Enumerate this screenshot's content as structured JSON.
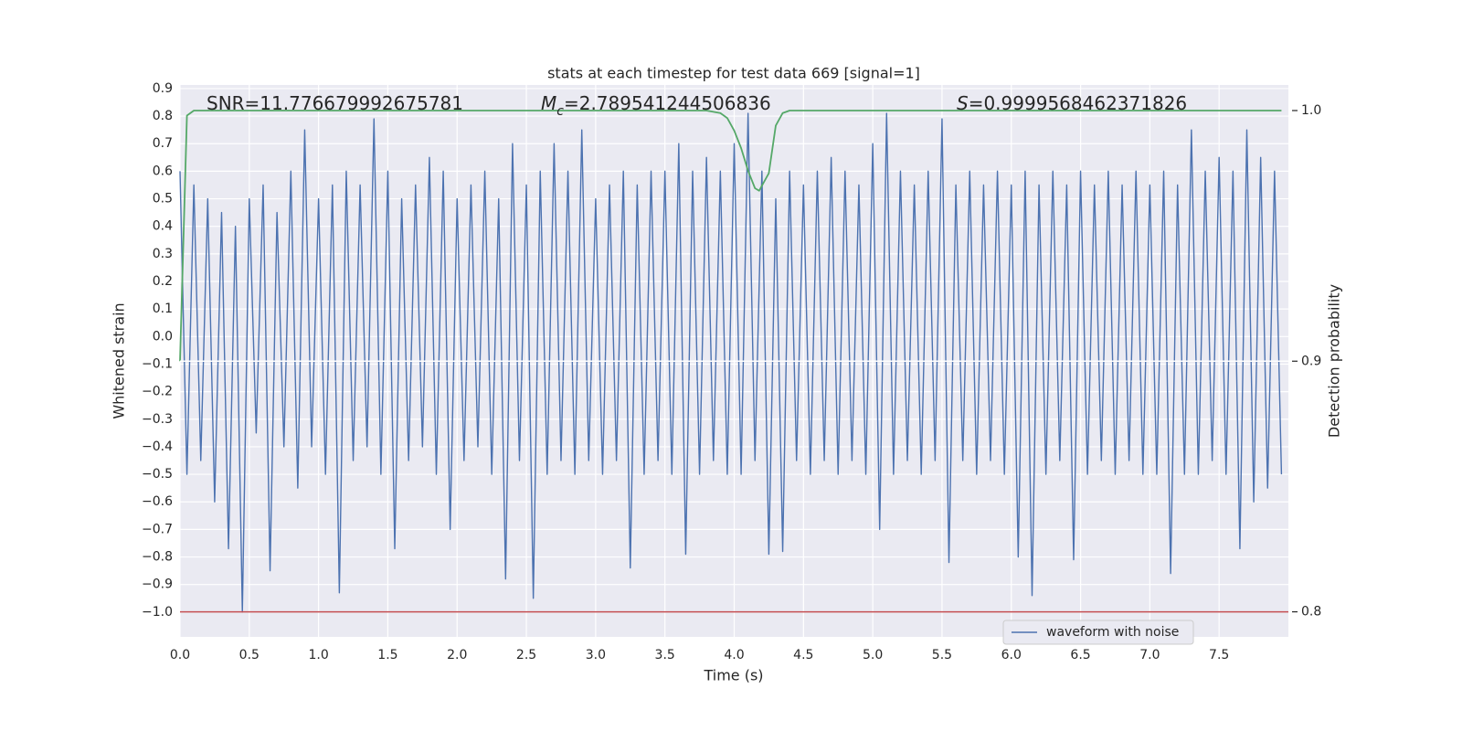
{
  "chart_data": {
    "type": "line",
    "title": "stats at each timestep for test data 669 [signal=1]",
    "xlabel": "Time (s)",
    "ylabel": "Whitened strain",
    "y2label": "Detection probability",
    "annotations": [
      {
        "text": "SNR=11.776679992675781"
      },
      {
        "symbol": "M",
        "subscript": "c",
        "text": "=2.789541244506836"
      },
      {
        "symbol": "S",
        "text": "=0.9999568462371826"
      }
    ],
    "xlim": [
      0,
      8
    ],
    "ylim": [
      -1.09,
      0.913
    ],
    "y2lim": [
      0.79,
      1.0102
    ],
    "xticks": [
      {
        "value": 0,
        "label": "0.0"
      },
      {
        "value": 0.5,
        "label": "0.5"
      },
      {
        "value": 1,
        "label": "1.0"
      },
      {
        "value": 1.5,
        "label": "1.5"
      },
      {
        "value": 2,
        "label": "2.0"
      },
      {
        "value": 2.5,
        "label": "2.5"
      },
      {
        "value": 3,
        "label": "3.0"
      },
      {
        "value": 3.5,
        "label": "3.5"
      },
      {
        "value": 4,
        "label": "4.0"
      },
      {
        "value": 4.5,
        "label": "4.5"
      },
      {
        "value": 5,
        "label": "5.0"
      },
      {
        "value": 5.5,
        "label": "5.5"
      },
      {
        "value": 6,
        "label": "6.0"
      },
      {
        "value": 6.5,
        "label": "6.5"
      },
      {
        "value": 7,
        "label": "7.0"
      },
      {
        "value": 7.5,
        "label": "7.5"
      }
    ],
    "yticks": [
      {
        "value": 0.9,
        "label": "0.9"
      },
      {
        "value": 0.8,
        "label": "0.8"
      },
      {
        "value": 0.7,
        "label": "0.7"
      },
      {
        "value": 0.6,
        "label": "0.6"
      },
      {
        "value": 0.5,
        "label": "0.5"
      },
      {
        "value": 0.4,
        "label": "0.4"
      },
      {
        "value": 0.3,
        "label": "0.3"
      },
      {
        "value": 0.2,
        "label": "0.2"
      },
      {
        "value": 0.1,
        "label": "0.1"
      },
      {
        "value": 0,
        "label": "0.0"
      },
      {
        "value": -0.1,
        "label": "−0.1"
      },
      {
        "value": -0.2,
        "label": "−0.2"
      },
      {
        "value": -0.3,
        "label": "−0.3"
      },
      {
        "value": -0.4,
        "label": "−0.4"
      },
      {
        "value": -0.5,
        "label": "−0.5"
      },
      {
        "value": -0.6,
        "label": "−0.6"
      },
      {
        "value": -0.7,
        "label": "−0.7"
      },
      {
        "value": -0.8,
        "label": "−0.8"
      },
      {
        "value": -0.9,
        "label": "−0.9"
      },
      {
        "value": -1,
        "label": "−1.0"
      }
    ],
    "y2ticks": [
      {
        "value": 1,
        "label": "1.0"
      },
      {
        "value": 0.9,
        "label": "0.9"
      },
      {
        "value": 0.8,
        "label": "0.8"
      }
    ],
    "grid": true,
    "legend": "lower right",
    "hlines": [
      {
        "value": 0.9,
        "axis": "y2",
        "color": "#ffffff"
      },
      {
        "value": 0.8,
        "axis": "y2",
        "color": "#c44e52"
      }
    ],
    "series": [
      {
        "name": "waveform with noise",
        "color": "#4c72b0",
        "x": [
          0,
          0.05,
          0.1,
          0.15,
          0.2,
          0.25,
          0.3,
          0.35,
          0.4,
          0.45,
          0.5,
          0.55,
          0.6,
          0.65,
          0.7,
          0.75,
          0.8,
          0.85,
          0.9,
          0.95,
          1,
          1.05,
          1.1,
          1.15,
          1.2,
          1.25,
          1.3,
          1.35,
          1.4,
          1.45,
          1.5,
          1.55,
          1.6,
          1.65,
          1.7,
          1.75,
          1.8,
          1.85,
          1.9,
          1.95,
          2,
          2.05,
          2.1,
          2.15,
          2.2,
          2.25,
          2.3,
          2.35,
          2.4,
          2.45,
          2.5,
          2.55,
          2.6,
          2.65,
          2.7,
          2.75,
          2.8,
          2.85,
          2.9,
          2.95,
          3,
          3.05,
          3.1,
          3.15,
          3.2,
          3.25,
          3.3,
          3.35,
          3.4,
          3.45,
          3.5,
          3.55,
          3.6,
          3.65,
          3.7,
          3.75,
          3.8,
          3.85,
          3.9,
          3.95,
          4,
          4.05,
          4.1,
          4.15,
          4.2,
          4.25,
          4.3,
          4.35,
          4.4,
          4.45,
          4.5,
          4.55,
          4.6,
          4.65,
          4.7,
          4.75,
          4.8,
          4.85,
          4.9,
          4.95,
          5,
          5.05,
          5.1,
          5.15,
          5.2,
          5.25,
          5.3,
          5.35,
          5.4,
          5.45,
          5.5,
          5.55,
          5.6,
          5.65,
          5.7,
          5.75,
          5.8,
          5.85,
          5.9,
          5.95,
          6,
          6.05,
          6.1,
          6.15,
          6.2,
          6.25,
          6.3,
          6.35,
          6.4,
          6.45,
          6.5,
          6.55,
          6.6,
          6.65,
          6.7,
          6.75,
          6.8,
          6.85,
          6.9,
          6.95,
          7,
          7.05,
          7.1,
          7.15,
          7.2,
          7.25,
          7.3,
          7.35,
          7.4,
          7.45,
          7.5,
          7.55,
          7.6,
          7.65,
          7.7,
          7.75,
          7.8,
          7.85,
          7.9,
          7.95
        ],
        "values": [
          0.6,
          -0.5,
          0.55,
          -0.45,
          0.5,
          -0.6,
          0.45,
          -0.77,
          0.4,
          -1.0,
          0.5,
          -0.35,
          0.55,
          -0.85,
          0.45,
          -0.4,
          0.6,
          -0.55,
          0.75,
          -0.4,
          0.5,
          -0.5,
          0.55,
          -0.93,
          0.6,
          -0.45,
          0.55,
          -0.4,
          0.79,
          -0.5,
          0.6,
          -0.77,
          0.5,
          -0.45,
          0.55,
          -0.4,
          0.65,
          -0.5,
          0.6,
          -0.7,
          0.5,
          -0.45,
          0.55,
          -0.4,
          0.6,
          -0.5,
          0.5,
          -0.88,
          0.7,
          -0.45,
          0.55,
          -0.95,
          0.6,
          -0.5,
          0.7,
          -0.45,
          0.6,
          -0.5,
          0.75,
          -0.45,
          0.5,
          -0.5,
          0.55,
          -0.45,
          0.6,
          -0.84,
          0.55,
          -0.5,
          0.6,
          -0.45,
          0.6,
          -0.5,
          0.7,
          -0.79,
          0.6,
          -0.5,
          0.65,
          -0.45,
          0.6,
          -0.5,
          0.7,
          -0.5,
          0.81,
          -0.45,
          0.6,
          -0.79,
          0.5,
          -0.78,
          0.6,
          -0.45,
          0.55,
          -0.5,
          0.6,
          -0.45,
          0.65,
          -0.5,
          0.6,
          -0.45,
          0.55,
          -0.5,
          0.7,
          -0.7,
          0.81,
          -0.5,
          0.6,
          -0.45,
          0.55,
          -0.5,
          0.6,
          -0.45,
          0.79,
          -0.82,
          0.55,
          -0.45,
          0.6,
          -0.5,
          0.55,
          -0.45,
          0.6,
          -0.5,
          0.55,
          -0.8,
          0.6,
          -0.94,
          0.55,
          -0.5,
          0.6,
          -0.45,
          0.55,
          -0.81,
          0.6,
          -0.5,
          0.55,
          -0.45,
          0.6,
          -0.5,
          0.55,
          -0.45,
          0.6,
          -0.5,
          0.55,
          -0.5,
          0.6,
          -0.86,
          0.55,
          -0.5,
          0.75,
          -0.5,
          0.6,
          -0.45,
          0.65,
          -0.5,
          0.6,
          -0.77,
          0.75,
          -0.6,
          0.65,
          -0.55,
          0.6,
          -0.5
        ]
      },
      {
        "color": "#55a868",
        "axis": "y2",
        "x": [
          0,
          0.05,
          0.1,
          0.5,
          1,
          2,
          3,
          3.8,
          3.9,
          3.95,
          4,
          4.05,
          4.1,
          4.15,
          4.18,
          4.25,
          4.3,
          4.35,
          4.4,
          5,
          6,
          7,
          7.95
        ],
        "values": [
          0.9,
          0.998,
          1.0,
          1.0,
          1.0,
          1.0,
          1.0,
          1.0,
          0.999,
          0.997,
          0.992,
          0.985,
          0.976,
          0.969,
          0.968,
          0.975,
          0.994,
          0.999,
          1.0,
          1.0,
          1.0,
          1.0,
          1.0
        ]
      }
    ]
  }
}
